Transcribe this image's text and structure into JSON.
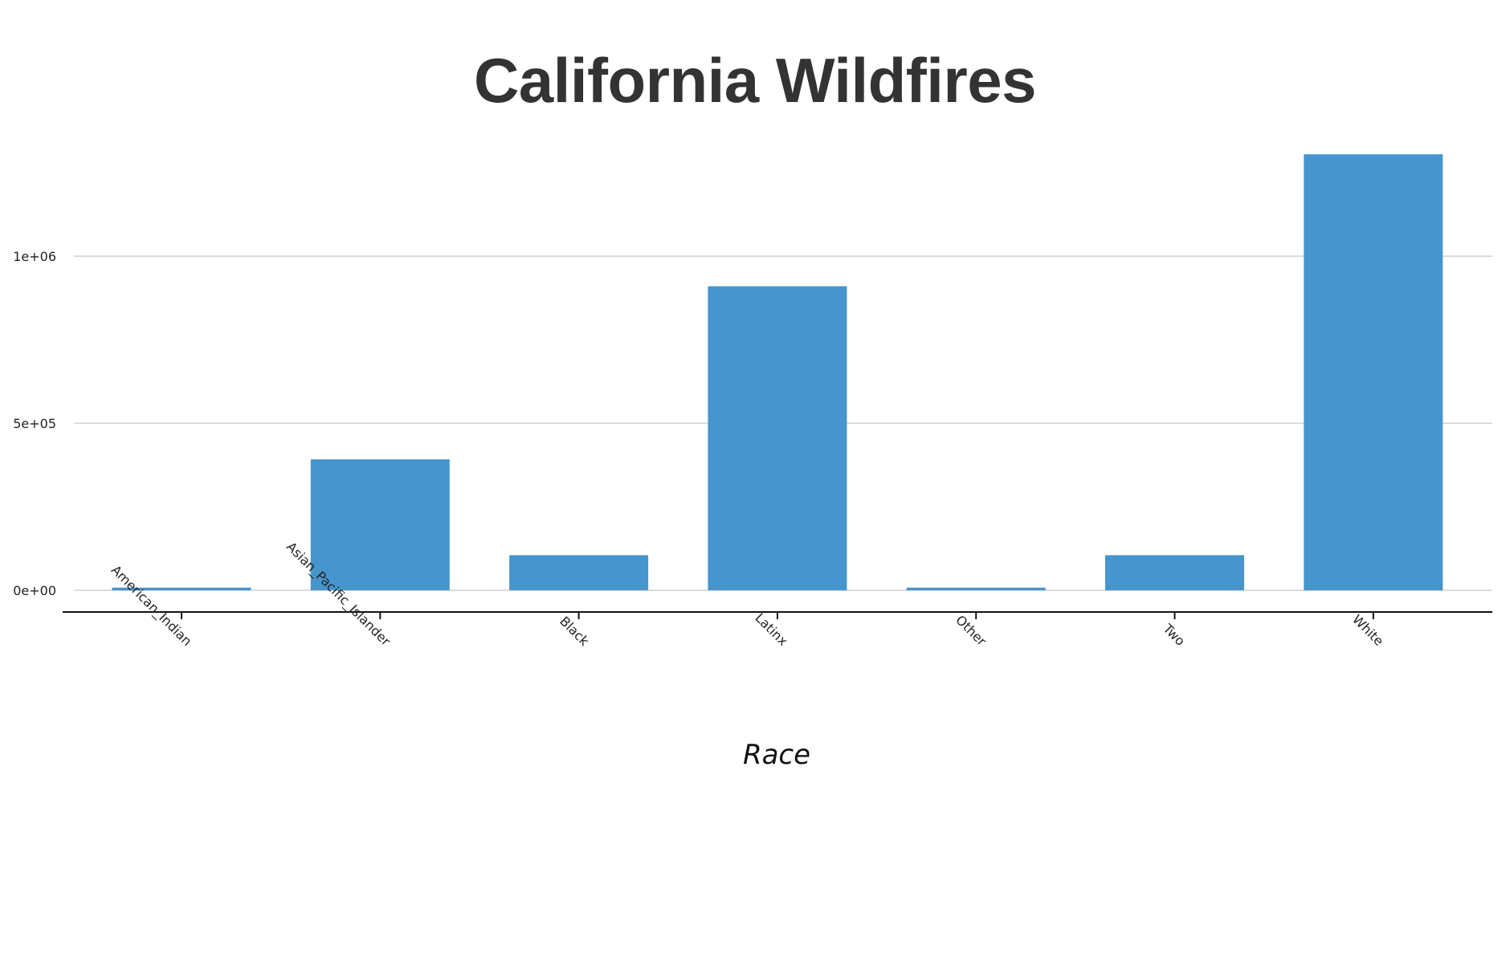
{
  "chart_data": {
    "type": "bar",
    "title": "California Wildfires",
    "xlabel": "Race",
    "ylabel": "",
    "categories": [
      "American_Indian",
      "Asian_Pacific_Islander",
      "Black",
      "Latinx",
      "Other",
      "Two",
      "White"
    ],
    "values": [
      8000,
      392000,
      105000,
      910000,
      8000,
      105000,
      1305000
    ],
    "ylim": [
      0,
      1350000
    ],
    "yticks": [
      0,
      500000,
      1000000
    ],
    "ytick_labels": [
      "0e+00",
      "5e+05",
      "1e+06"
    ],
    "grid": true,
    "bar_color": "#4695CD"
  }
}
